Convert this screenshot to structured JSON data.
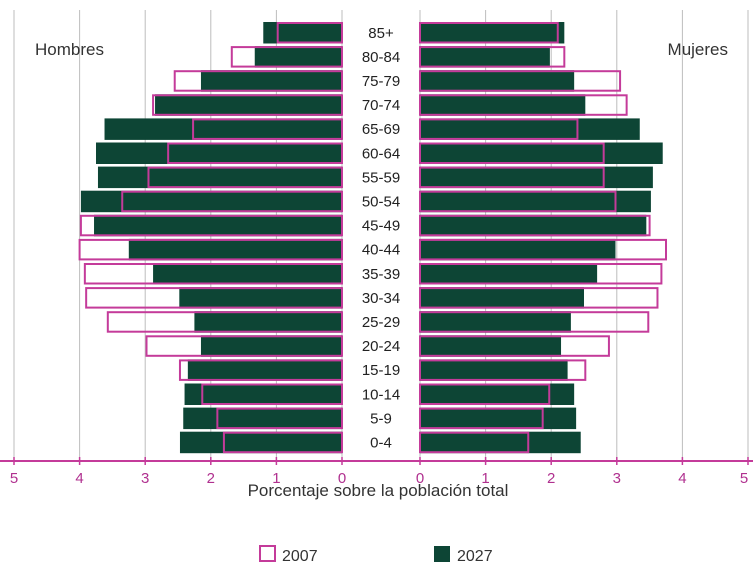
{
  "chart_data": {
    "type": "bar",
    "subtype": "population-pyramid",
    "title": "",
    "xlabel": "Porcentaje sobre la población total",
    "ylabel": "",
    "side_labels": {
      "left": "Hombres",
      "right": "Mujeres"
    },
    "xlim": [
      0,
      5
    ],
    "x_ticks_left": [
      "5",
      "4",
      "3",
      "2",
      "1",
      "0"
    ],
    "x_ticks_right": [
      "0",
      "1",
      "2",
      "3",
      "4",
      "5"
    ],
    "grid": true,
    "legend_position": "bottom",
    "categories": [
      "85+",
      "80-84",
      "75-79",
      "70-74",
      "65-69",
      "60-64",
      "55-59",
      "50-54",
      "45-49",
      "40-44",
      "35-39",
      "30-34",
      "25-29",
      "20-24",
      "15-19",
      "10-14",
      "5-9",
      "0-4"
    ],
    "series": [
      {
        "name": "2007",
        "style": "outline",
        "color": "#c43b9a",
        "men": [
          0.98,
          1.68,
          2.55,
          2.88,
          2.27,
          2.65,
          2.95,
          3.35,
          3.98,
          4.0,
          3.92,
          3.9,
          3.57,
          2.98,
          2.47,
          2.13,
          1.9,
          1.8
        ],
        "women": [
          2.1,
          2.2,
          3.05,
          3.15,
          2.4,
          2.8,
          2.8,
          2.98,
          3.5,
          3.75,
          3.68,
          3.62,
          3.48,
          2.88,
          2.52,
          1.97,
          1.87,
          1.65
        ]
      },
      {
        "name": "2027",
        "style": "filled",
        "color": "#0d4535",
        "men": [
          1.2,
          1.33,
          2.15,
          2.85,
          3.62,
          3.75,
          3.72,
          3.98,
          3.78,
          3.25,
          2.88,
          2.48,
          2.25,
          2.15,
          2.35,
          2.4,
          2.42,
          2.47
        ],
        "women": [
          2.2,
          1.98,
          2.35,
          2.52,
          3.35,
          3.7,
          3.55,
          3.52,
          3.45,
          2.98,
          2.7,
          2.5,
          2.3,
          2.15,
          2.25,
          2.35,
          2.38,
          2.45
        ]
      }
    ]
  }
}
